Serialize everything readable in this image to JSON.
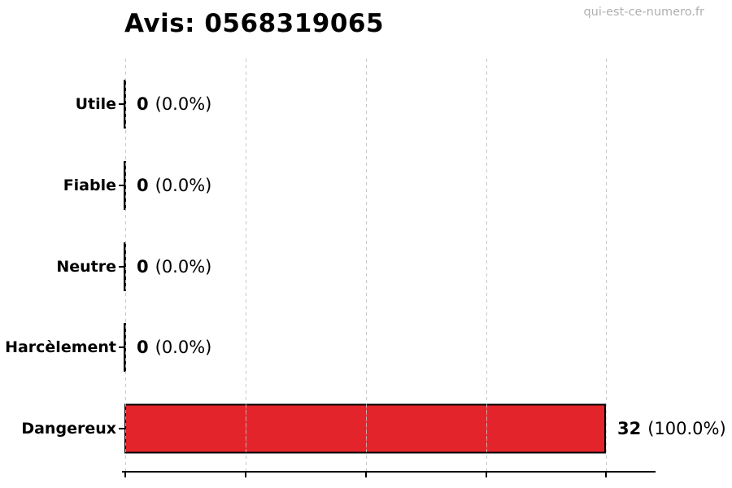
{
  "title": "Avis: 0568319065",
  "watermark": "qui-est-ce-numero.fr",
  "chart_data": {
    "type": "bar",
    "orientation": "horizontal",
    "title": "Avis: 0568319065",
    "categories": [
      "Utile",
      "Fiable",
      "Neutre",
      "Harcèlement",
      "Dangereux"
    ],
    "values": [
      0,
      0,
      0,
      0,
      32
    ],
    "percentages": [
      0.0,
      0.0,
      0.0,
      0.0,
      100.0
    ],
    "rows": [
      {
        "label": "Utile",
        "count": "0",
        "pct": "(0.0%)"
      },
      {
        "label": "Fiable",
        "count": "0",
        "pct": "(0.0%)"
      },
      {
        "label": "Neutre",
        "count": "0",
        "pct": "(0.0%)"
      },
      {
        "label": "Harcèlement",
        "count": "0",
        "pct": "(0.0%)"
      },
      {
        "label": "Dangereux",
        "count": "32",
        "pct": "(100.0%)"
      }
    ],
    "xlabel": "",
    "ylabel": "",
    "xlim": [
      0,
      35.2
    ],
    "x_ticks": [
      0,
      8,
      16,
      24,
      32
    ],
    "x_tick_labels_visible": false,
    "grid": true,
    "grid_style": "dashed",
    "legend": "none",
    "bar_color": "#e3242a",
    "bar_edge_color": "#000000",
    "background_color": "#ffffff"
  }
}
